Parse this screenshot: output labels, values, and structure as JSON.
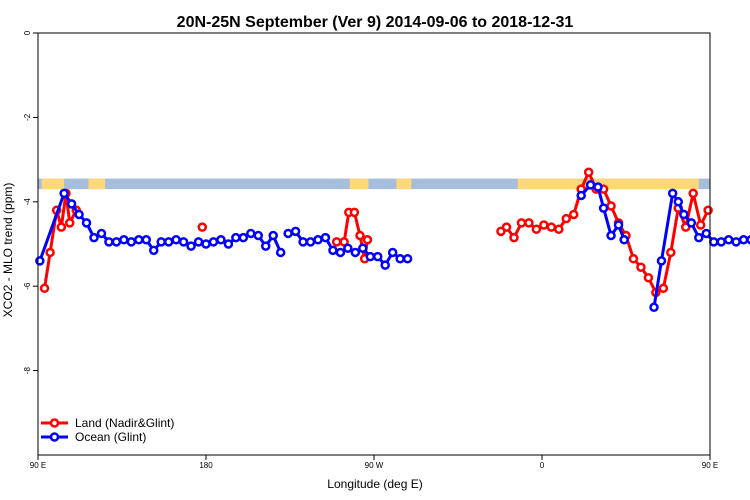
{
  "chart_data": {
    "type": "line",
    "title": "20N-25N September (Ver 9)   2014-09-06 to 2018-12-31",
    "xlabel": "Longitude (deg E)",
    "ylabel": "XCO2 - MLO trend (ppm)",
    "xlim": [
      90,
      450
    ],
    "ylim": [
      -10,
      0
    ],
    "x_ticks": [
      {
        "value": 90,
        "label": "90 E"
      },
      {
        "value": 180,
        "label": "180"
      },
      {
        "value": 270,
        "label": "90 W"
      },
      {
        "value": 360,
        "label": "0"
      },
      {
        "value": 450,
        "label": "90 E"
      },
      {
        "value": 540,
        "label": "180"
      }
    ],
    "y_ticks": [
      {
        "value": 0,
        "label": "0"
      },
      {
        "value": -2,
        "label": "-2"
      },
      {
        "value": -4,
        "label": "-4"
      },
      {
        "value": -6,
        "label": "-6"
      },
      {
        "value": -8,
        "label": "-8"
      }
    ],
    "legend_position": "bottom-left",
    "land_mask": {
      "y_range": [
        -3.7,
        -3.45
      ],
      "ocean_color": "#a6bddb",
      "land_color": "#fdd87a",
      "land_spans": [
        [
          92,
          104
        ],
        [
          117,
          126
        ],
        [
          257,
          267
        ],
        [
          282,
          290
        ],
        [
          347,
          444
        ],
        [
          460,
          535
        ]
      ]
    },
    "series": [
      {
        "name": "Land (Nadir&Glint)",
        "color": "#ff0000",
        "segments": [
          [
            [
              93.5,
              -6.05
            ],
            [
              96.5,
              -5.2
            ],
            [
              100,
              -4.2
            ],
            [
              102.5,
              -4.6
            ],
            [
              105,
              -3.8
            ],
            [
              107,
              -4.5
            ],
            [
              110.5,
              -4.2
            ]
          ],
          [
            [
              178,
              -4.6
            ]
          ],
          [
            [
              250,
              -4.95
            ],
            [
              254,
              -4.95
            ],
            [
              256.5,
              -4.25
            ],
            [
              259.5,
              -4.25
            ],
            [
              262.5,
              -4.8
            ],
            [
              265,
              -5.35
            ],
            [
              266.5,
              -4.9
            ]
          ],
          [
            [
              338,
              -4.7
            ],
            [
              341,
              -4.6
            ],
            [
              345,
              -4.85
            ],
            [
              349,
              -4.5
            ],
            [
              353,
              -4.5
            ],
            [
              357,
              -4.65
            ],
            [
              361,
              -4.55
            ],
            [
              365,
              -4.6
            ],
            [
              369,
              -4.65
            ],
            [
              373,
              -4.4
            ],
            [
              377,
              -4.3
            ],
            [
              381,
              -3.7
            ],
            [
              385,
              -3.3
            ],
            [
              389,
              -3.7
            ],
            [
              393,
              -3.7
            ],
            [
              397,
              -4.1
            ],
            [
              401,
              -4.5
            ],
            [
              405,
              -4.8
            ],
            [
              409,
              -5.35
            ],
            [
              413,
              -5.55
            ],
            [
              417,
              -5.8
            ],
            [
              421,
              -6.15
            ],
            [
              425,
              -6.05
            ],
            [
              429,
              -5.2
            ],
            [
              433,
              -4.15
            ],
            [
              437,
              -4.6
            ],
            [
              441,
              -3.8
            ],
            [
              445,
              -4.55
            ],
            [
              449,
              -4.2
            ]
          ]
        ]
      },
      {
        "name": "Ocean (Glint)",
        "color": "#0000ff",
        "segments": [
          [
            [
              91,
              -5.4
            ],
            [
              104,
              -3.8
            ],
            [
              108,
              -4.05
            ],
            [
              112,
              -4.3
            ],
            [
              116,
              -4.5
            ],
            [
              120,
              -4.85
            ],
            [
              124,
              -4.75
            ],
            [
              128,
              -4.95
            ],
            [
              132,
              -4.95
            ],
            [
              136,
              -4.9
            ],
            [
              140,
              -4.95
            ],
            [
              144,
              -4.9
            ],
            [
              148,
              -4.9
            ],
            [
              152,
              -5.15
            ],
            [
              156,
              -4.95
            ],
            [
              160,
              -4.95
            ],
            [
              164,
              -4.9
            ],
            [
              168,
              -4.95
            ],
            [
              172,
              -5.05
            ],
            [
              176,
              -4.95
            ],
            [
              180,
              -5.0
            ],
            [
              184,
              -4.95
            ],
            [
              188,
              -4.9
            ],
            [
              192,
              -5.0
            ],
            [
              196,
              -4.85
            ],
            [
              200,
              -4.85
            ],
            [
              204,
              -4.75
            ],
            [
              208,
              -4.8
            ],
            [
              212,
              -5.05
            ],
            [
              216,
              -4.8
            ],
            [
              220,
              -5.2
            ]
          ],
          [
            [
              224,
              -4.75
            ],
            [
              228,
              -4.7
            ],
            [
              232,
              -4.95
            ],
            [
              236,
              -4.95
            ],
            [
              240,
              -4.9
            ],
            [
              244,
              -4.85
            ],
            [
              248,
              -5.15
            ],
            [
              252,
              -5.2
            ],
            [
              256,
              -5.1
            ],
            [
              260,
              -5.2
            ],
            [
              264,
              -5.1
            ],
            [
              268,
              -5.3
            ],
            [
              272,
              -5.3
            ],
            [
              276,
              -5.5
            ],
            [
              280,
              -5.2
            ],
            [
              284,
              -5.35
            ],
            [
              288,
              -5.35
            ]
          ],
          [
            [
              381,
              -3.85
            ],
            [
              386,
              -3.6
            ],
            [
              390,
              -3.65
            ],
            [
              393,
              -4.15
            ],
            [
              397,
              -4.8
            ],
            [
              401,
              -4.55
            ],
            [
              404,
              -4.9
            ]
          ],
          [
            [
              420,
              -6.5
            ],
            [
              424,
              -5.4
            ],
            [
              430,
              -3.8
            ],
            [
              433,
              -4.0
            ],
            [
              436,
              -4.3
            ],
            [
              440,
              -4.5
            ],
            [
              444,
              -4.85
            ],
            [
              448,
              -4.75
            ],
            [
              452,
              -4.95
            ],
            [
              456,
              -4.95
            ],
            [
              460,
              -4.9
            ],
            [
              464,
              -4.95
            ],
            [
              468,
              -4.9
            ],
            [
              472,
              -4.9
            ],
            [
              476,
              -5.15
            ],
            [
              480,
              -4.95
            ],
            [
              484,
              -4.95
            ]
          ]
        ]
      }
    ]
  }
}
